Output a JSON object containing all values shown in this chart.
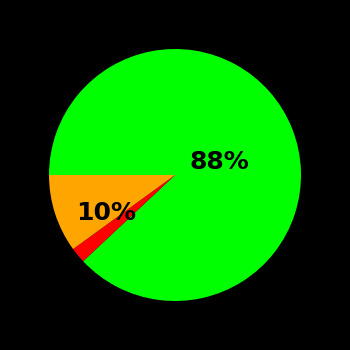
{
  "slices": [
    88,
    2,
    10
  ],
  "colors": [
    "#00ff00",
    "#ff0000",
    "#ffa500"
  ],
  "background_color": "#000000",
  "text_color": "#000000",
  "label_88": "88%",
  "label_10": "10%",
  "startangle": 180,
  "label_fontsize": 18,
  "label_fontweight": "bold"
}
